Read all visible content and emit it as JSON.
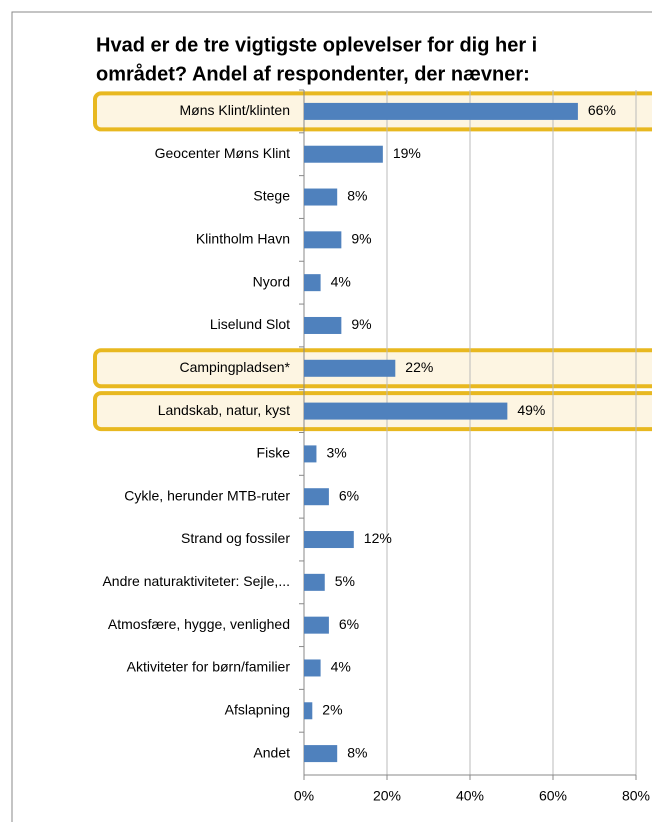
{
  "chart_data": {
    "type": "bar",
    "orientation": "horizontal",
    "title": [
      "Hvad er de tre vigtigste oplevelser for dig her i",
      "området? Andel af respondenter, der nævner:"
    ],
    "categories": [
      "Møns Klint/klinten",
      "Geocenter Møns Klint",
      "Stege",
      "Klintholm Havn",
      "Nyord",
      "Liselund Slot",
      "Campingpladsen*",
      "Landskab, natur, kyst",
      "Fiske",
      "Cykle, herunder MTB-ruter",
      "Strand og fossiler",
      "Andre naturaktiviteter: Sejle,...",
      "Atmosfære, hygge, venlighed",
      "Aktiviteter for børn/familier",
      "Afslapning",
      "Andet"
    ],
    "values": [
      66,
      19,
      8,
      9,
      4,
      9,
      22,
      49,
      3,
      6,
      12,
      5,
      6,
      4,
      2,
      8
    ],
    "value_labels": [
      "66%",
      "19%",
      "8%",
      "9%",
      "4%",
      "9%",
      "22%",
      "49%",
      "3%",
      "6%",
      "12%",
      "5%",
      "6%",
      "4%",
      "2%",
      "8%"
    ],
    "highlight": [
      true,
      false,
      false,
      false,
      false,
      false,
      true,
      true,
      false,
      false,
      false,
      false,
      false,
      false,
      false,
      false
    ],
    "color": "#4f81bd",
    "highlight_color": "#e8b820",
    "xlim": [
      0,
      80
    ],
    "xticks": [
      {
        "value": 0,
        "label": "0%"
      },
      {
        "value": 20,
        "label": "20%"
      },
      {
        "value": 40,
        "label": "40%"
      },
      {
        "value": 60,
        "label": "60%"
      },
      {
        "value": 80,
        "label": "80%"
      }
    ],
    "grid": true
  }
}
